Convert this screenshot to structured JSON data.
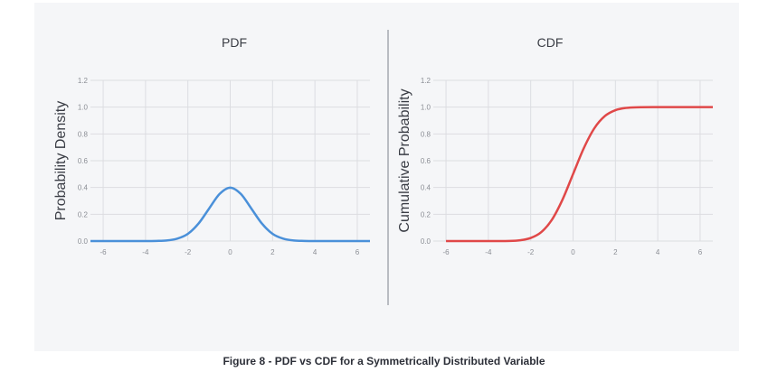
{
  "chart_data": [
    {
      "type": "line",
      "title": "PDF",
      "xlabel": "",
      "ylabel": "Probability Density",
      "xlim": [
        -6.6,
        6.6
      ],
      "ylim": [
        0,
        1.2
      ],
      "x_ticks": [
        -6,
        -4,
        -2,
        0,
        2,
        4,
        6
      ],
      "y_ticks": [
        0.0,
        0.2,
        0.4,
        0.6,
        0.8,
        1.0,
        1.2
      ],
      "grid": true,
      "color": "#4a90d9",
      "series": [
        {
          "x": [
            -6.6,
            -6,
            -5,
            -4,
            -3.5,
            -3,
            -2.5,
            -2,
            -1.5,
            -1,
            -0.5,
            0,
            0.5,
            1,
            1.5,
            2,
            2.5,
            3,
            3.5,
            4,
            5,
            6,
            6.6
          ],
          "values": [
            0,
            0,
            0,
            0,
            0.001,
            0.004,
            0.018,
            0.054,
            0.13,
            0.242,
            0.352,
            0.399,
            0.352,
            0.242,
            0.13,
            0.054,
            0.018,
            0.004,
            0.001,
            0,
            0,
            0,
            0
          ]
        }
      ]
    },
    {
      "type": "line",
      "title": "CDF",
      "xlabel": "",
      "ylabel": "Cumulative Probability",
      "xlim": [
        -6.6,
        6.6
      ],
      "ylim": [
        0,
        1.2
      ],
      "x_ticks": [
        -6,
        -4,
        -2,
        0,
        2,
        4,
        6
      ],
      "y_ticks": [
        0.0,
        0.2,
        0.4,
        0.6,
        0.8,
        1.0,
        1.2
      ],
      "grid": true,
      "color": "#e04848",
      "series": [
        {
          "x": [
            -6,
            -5,
            -4,
            -3,
            -2.5,
            -2,
            -1.5,
            -1,
            -0.5,
            0,
            0.5,
            1,
            1.5,
            2,
            2.5,
            3,
            4,
            5,
            6.6
          ],
          "values": [
            0,
            0,
            0,
            0.001,
            0.006,
            0.023,
            0.067,
            0.159,
            0.309,
            0.5,
            0.691,
            0.841,
            0.933,
            0.977,
            0.994,
            0.999,
            1,
            1,
            1
          ]
        }
      ]
    }
  ],
  "caption": "Figure 8 - PDF vs CDF for a Symmetrically Distributed Variable"
}
